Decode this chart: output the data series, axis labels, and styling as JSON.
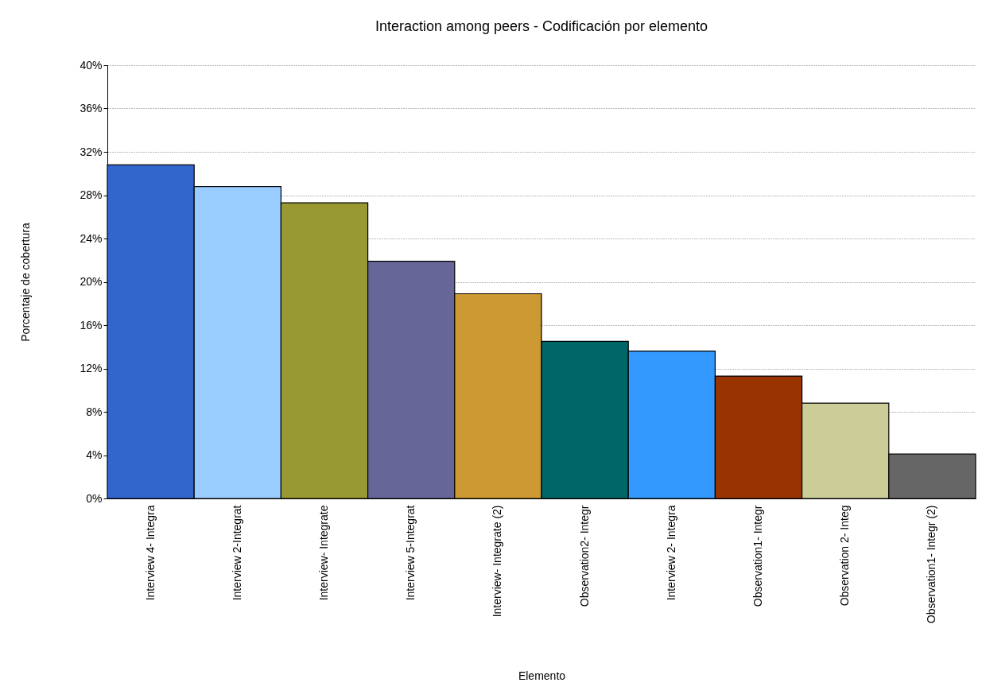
{
  "chart_data": {
    "type": "bar",
    "title": "Interaction among peers - Codificación por elemento",
    "xlabel": "Elemento",
    "ylabel": "Porcentaje de cobertura",
    "categories": [
      "Interview 4- Integra",
      "Interview 2-Integrat",
      "Interview- Integrate",
      "Interview 5-Integrat",
      "Interview- Integrate (2)",
      "Observation2- Integr",
      "Interview 2- Integra",
      "Observation1- Integr",
      "Observation 2- Integ",
      "Observation1- Integr (2)"
    ],
    "values": [
      30.8,
      28.8,
      27.3,
      21.9,
      18.9,
      14.5,
      13.6,
      11.3,
      8.8,
      4.1
    ],
    "colors": [
      "#3366cc",
      "#99ccff",
      "#999933",
      "#666699",
      "#cc9933",
      "#006666",
      "#3399ff",
      "#993300",
      "#cccc99",
      "#666666"
    ],
    "ylim": [
      0,
      40
    ],
    "yticks": [
      {
        "value": 0,
        "label": "0%"
      },
      {
        "value": 4,
        "label": "4%"
      },
      {
        "value": 8,
        "label": "8%"
      },
      {
        "value": 12,
        "label": "12%"
      },
      {
        "value": 16,
        "label": "16%"
      },
      {
        "value": 20,
        "label": "20%"
      },
      {
        "value": 24,
        "label": "24%"
      },
      {
        "value": 28,
        "label": "28%"
      },
      {
        "value": 32,
        "label": "32%"
      },
      {
        "value": 36,
        "label": "36%"
      },
      {
        "value": 40,
        "label": "40%"
      }
    ],
    "grid": "y"
  }
}
